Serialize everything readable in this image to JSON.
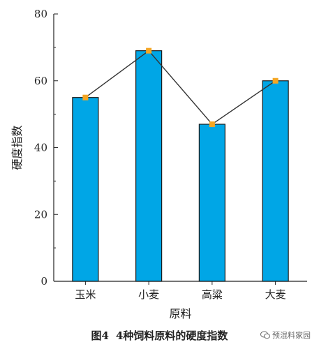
{
  "chart_data": {
    "type": "bar",
    "categories": [
      "玉米",
      "小麦",
      "高粱",
      "大麦"
    ],
    "values": [
      55,
      69,
      47,
      60
    ],
    "line_values": [
      55,
      69,
      47,
      60
    ],
    "xlabel": "原料",
    "ylabel": "硬度指数",
    "ylim": [
      0,
      80
    ],
    "yticks": [
      0,
      20,
      40,
      60,
      80
    ],
    "grid": false,
    "colors": {
      "bar": "#00a6e6",
      "bar_stroke": "#1a1a1a",
      "line": "#333333",
      "marker": "#f5a623"
    }
  },
  "caption": {
    "fig_no": "图4",
    "text": "4种饲料原料的硬度指数"
  },
  "watermark": {
    "text": "预混料家园",
    "icon": "wechat-icon"
  }
}
